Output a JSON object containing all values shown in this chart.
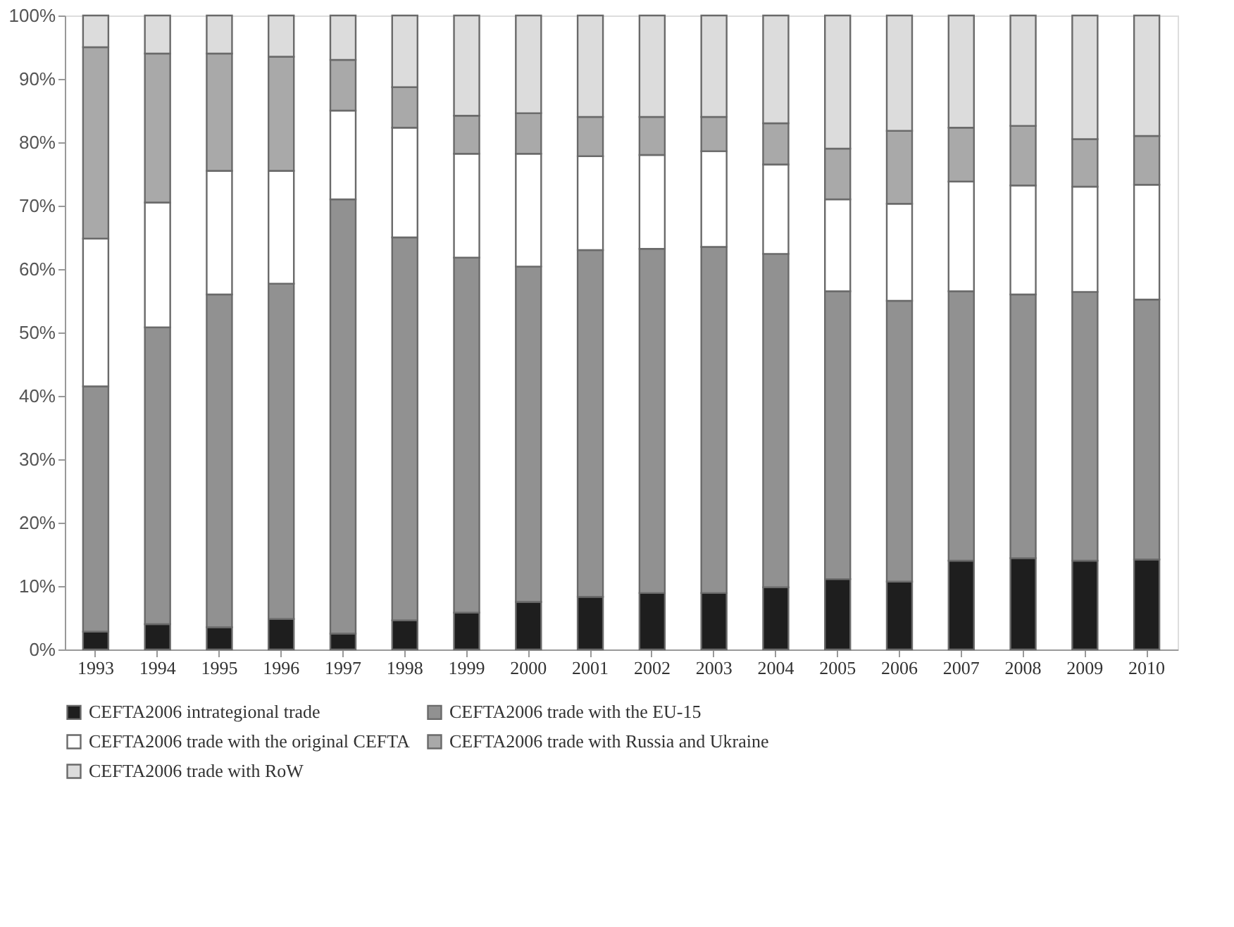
{
  "chart_data": {
    "type": "bar",
    "stacked": true,
    "categories": [
      "1993",
      "1994",
      "1995",
      "1996",
      "1997",
      "1998",
      "1999",
      "2000",
      "2001",
      "2002",
      "2003",
      "2004",
      "2005",
      "2006",
      "2007",
      "2008",
      "2009",
      "2010"
    ],
    "series": [
      {
        "name": "CEFTA2006 intrategional trade",
        "color": "#1e1e1e",
        "values": [
          2.8,
          4,
          3.5,
          4.8,
          2.5,
          4.6,
          5.8,
          7.5,
          8.3,
          8.9,
          8.9,
          9.8,
          11.1,
          10.7,
          14,
          14.4,
          14,
          14.2
        ]
      },
      {
        "name": "CEFTA2006 trade with the EU-15",
        "color": "#919191",
        "values": [
          38.7,
          46.8,
          52.5,
          52.9,
          68.5,
          60.4,
          56,
          52.9,
          54.7,
          54.3,
          54.6,
          52.6,
          45.4,
          44.3,
          42.5,
          41.6,
          42.4,
          41
        ]
      },
      {
        "name": "CEFTA2006 trade with the original CEFTA",
        "color": "#ffffff",
        "values": [
          23.3,
          19.7,
          19.5,
          17.8,
          14,
          17.3,
          16.4,
          17.8,
          14.8,
          14.8,
          15.1,
          14.1,
          14.5,
          15.3,
          17.3,
          17.2,
          16.6,
          18.1
        ]
      },
      {
        "name": "CEFTA2006 trade with Russia and Ukraine",
        "color": "#a9a9a9",
        "values": [
          30.2,
          23.5,
          18.5,
          18,
          8,
          6.4,
          6,
          6.4,
          6.2,
          6,
          5.4,
          6.5,
          8,
          11.5,
          8.5,
          9.4,
          7.5,
          7.7
        ]
      },
      {
        "name": "CEFTA2006 trade with RoW",
        "color": "#dcdcdc",
        "values": [
          5,
          6,
          6,
          6.5,
          7,
          11.3,
          15.8,
          15.4,
          16,
          16,
          16,
          17,
          21,
          18.2,
          17.7,
          17.4,
          19.5,
          19
        ]
      }
    ],
    "ylim": [
      0,
      100
    ],
    "yticks": [
      {
        "value": 0,
        "label": "0%"
      },
      {
        "value": 10,
        "label": "10%"
      },
      {
        "value": 20,
        "label": "20%"
      },
      {
        "value": 30,
        "label": "30%"
      },
      {
        "value": 40,
        "label": "40%"
      },
      {
        "value": 50,
        "label": "50%"
      },
      {
        "value": 60,
        "label": "60%"
      },
      {
        "value": 70,
        "label": "70%"
      },
      {
        "value": 80,
        "label": "80%"
      },
      {
        "value": 90,
        "label": "90%"
      },
      {
        "value": 100,
        "label": "100%"
      }
    ],
    "grid": false,
    "legend": "bottom"
  }
}
